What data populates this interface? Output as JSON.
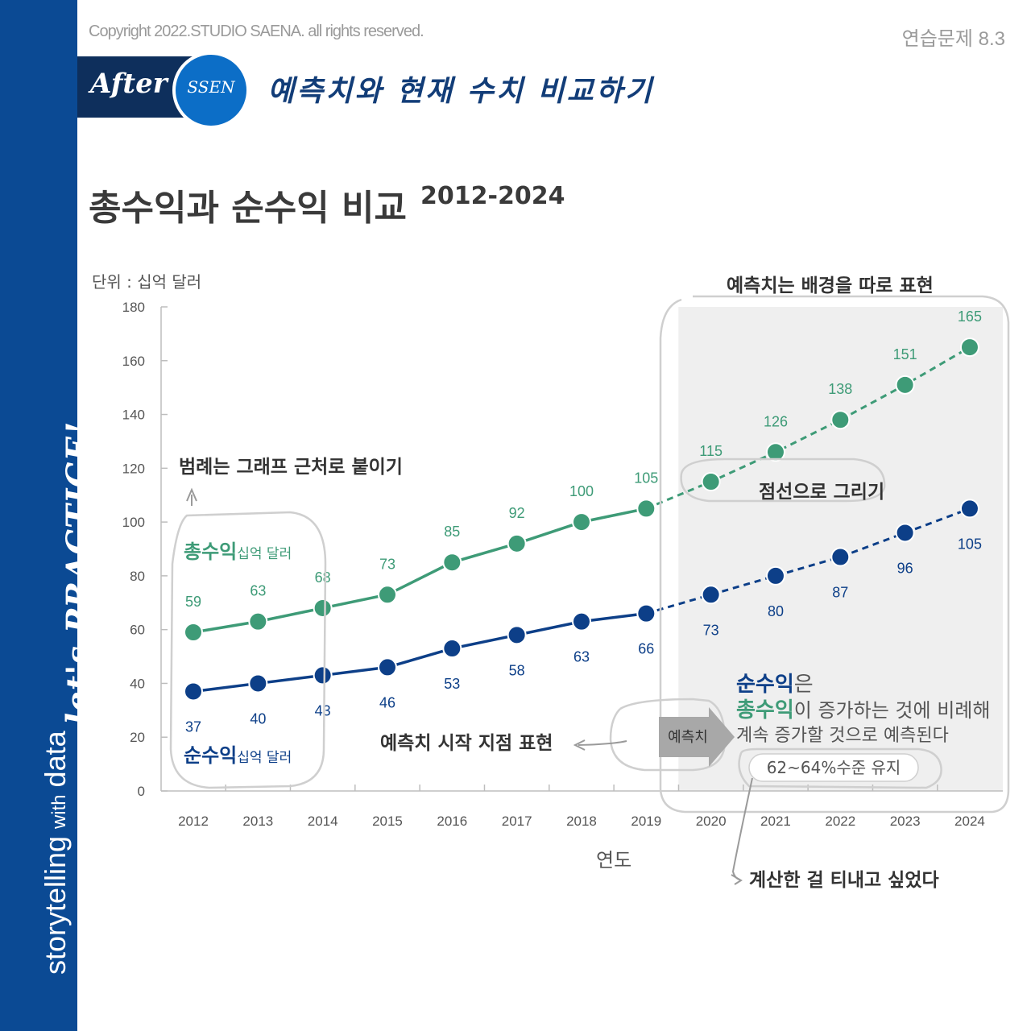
{
  "header": {
    "copyright": "Copyright 2022.STUDIO SAENA. all rights reserved.",
    "exercise": "연습문제 8.3",
    "banner_word": "After",
    "badge_word": "SSEN",
    "subtitle": "예측치와 현재 수치 비교하기"
  },
  "sidebar": {
    "word_main": "storytelling",
    "word_small": "with",
    "word_end": "data",
    "script": "let's PRACTICE!"
  },
  "colors": {
    "sidebar": "#0b4a94",
    "gross": "#3e9b77",
    "net": "#0d3f88",
    "forecast_bg": "#efefef"
  },
  "chart_data": {
    "type": "line",
    "title": "총수익과 순수익 비교",
    "subtitle": "2012-2024",
    "unit_label": "단위 : 십억 달러",
    "xlabel": "연도",
    "ylabel": "",
    "ylim": [
      0,
      180
    ],
    "y_ticks": [
      0,
      20,
      40,
      60,
      80,
      100,
      120,
      140,
      160,
      180
    ],
    "x": [
      2012,
      2013,
      2014,
      2015,
      2016,
      2017,
      2018,
      2019,
      2020,
      2021,
      2022,
      2023,
      2024
    ],
    "forecast_start": 2019,
    "series": [
      {
        "name": "총수익",
        "unit": "십억 달러",
        "values": [
          59,
          63,
          68,
          73,
          85,
          92,
          100,
          105,
          115,
          126,
          138,
          151,
          165
        ]
      },
      {
        "name": "순수익",
        "unit": "십억 달러",
        "values": [
          37,
          40,
          43,
          46,
          53,
          58,
          63,
          66,
          73,
          80,
          87,
          96,
          105
        ]
      }
    ],
    "forecast_tag": "예측치",
    "note_net": "순수익",
    "note_particle": "은",
    "note_gross": "총수익",
    "note_line1_rest": "이 증가하는 것에 비례해",
    "note_line2": "계속 증가할 것으로 예측된다",
    "note_pill": "62~64%수준 유지",
    "annotations": {
      "legend_near": "범례는 그래프 근처로 붙이기",
      "forecast_bg": "예측치는 배경을 따로 표현",
      "dotted": "점선으로 그리기",
      "start_point": "예측치 시작 지점 표현",
      "calculated": "계산한 걸 티내고 싶었다"
    }
  }
}
